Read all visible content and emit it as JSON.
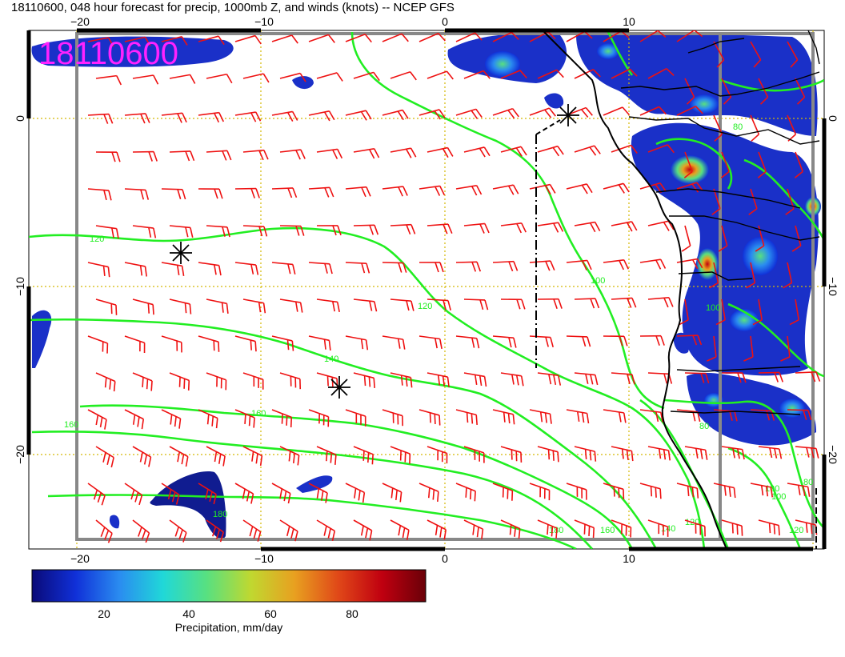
{
  "title": "18110600, 048 hour forecast for precip, 1000mb Z, and winds (knots) -- NCEP GFS",
  "stamp": "18110600",
  "colors": {
    "stamp": "#ff22ff",
    "contour": "#22ee22",
    "barb": "#ee1111",
    "coast": "#000000",
    "grid": "#d4b800",
    "box": "#888888"
  },
  "axes": {
    "lon_ticks": [
      "−20",
      "−10",
      "0",
      "10"
    ],
    "lat_ticks_left": [
      "0",
      "−10",
      "−20"
    ],
    "lat_ticks_right": [
      "0",
      "−10",
      "−20"
    ]
  },
  "contour_labels": [
    "120",
    "120",
    "140",
    "160",
    "160",
    "100",
    "100",
    "100",
    "180",
    "180",
    "160",
    "140",
    "120",
    "100",
    "80",
    "120",
    "80",
    "80"
  ],
  "storm_markers": [
    "star-marker",
    "star-marker",
    "star-marker"
  ],
  "colorbar": {
    "label": "Precipitation, mm/day",
    "ticks": [
      "20",
      "40",
      "60",
      "80"
    ],
    "stops": [
      "#0a0a78",
      "#1030d8",
      "#2a8cf0",
      "#20d8d8",
      "#58e080",
      "#c0d830",
      "#e8a020",
      "#e04818",
      "#c00010",
      "#6a0008"
    ]
  }
}
